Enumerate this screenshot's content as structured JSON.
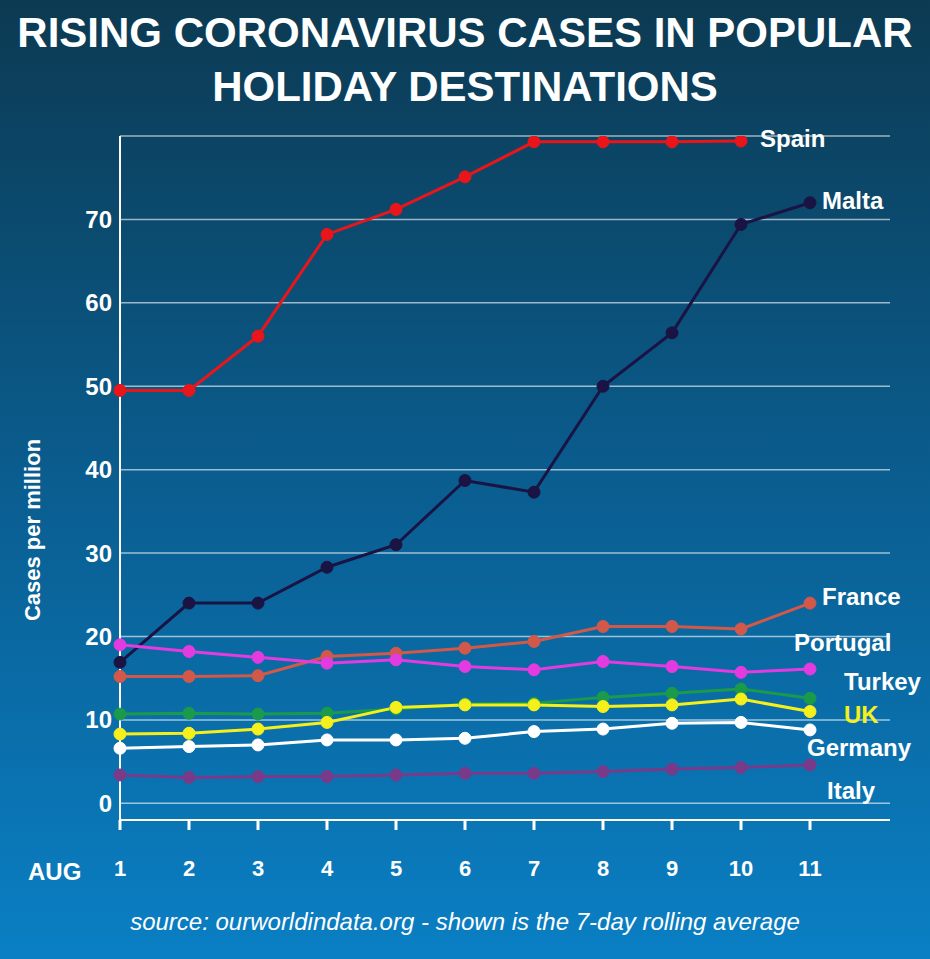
{
  "chart_data": {
    "type": "line",
    "title": "RISING CORONAVIRUS CASES IN POPULAR HOLIDAY DESTINATIONS",
    "y_label": "Cases per million",
    "x_label": "AUG",
    "source": "source: ourworldindata.org - shown is the 7-day rolling average",
    "categories": [
      "1",
      "2",
      "3",
      "4",
      "5",
      "6",
      "7",
      "8",
      "9",
      "10",
      "11"
    ],
    "series": [
      {
        "name": "Spain",
        "color": "#e8161b",
        "values": [
          49.5,
          49.5,
          56,
          68.2,
          71.2,
          75.1,
          79.3,
          79.3,
          79.3,
          79.4,
          null
        ]
      },
      {
        "name": "Malta",
        "color": "#1a1445",
        "values": [
          16.9,
          24,
          24,
          28.3,
          31,
          38.7,
          37.3,
          50,
          56.4,
          69.4,
          72
        ]
      },
      {
        "name": "France",
        "color": "#d2584a",
        "values": [
          15.2,
          15.2,
          15.3,
          17.6,
          18,
          18.6,
          19.4,
          21.2,
          21.2,
          20.9,
          24
        ]
      },
      {
        "name": "Portugal",
        "color": "#e23be0",
        "values": [
          19,
          18.2,
          17.5,
          16.8,
          17.2,
          16.4,
          16,
          17,
          16.4,
          15.7,
          16.1
        ]
      },
      {
        "name": "Turkey",
        "color": "#1a9a4a",
        "values": [
          10.7,
          10.8,
          10.7,
          10.8,
          11.3,
          11.9,
          12,
          12.7,
          13.2,
          13.7,
          12.6
        ]
      },
      {
        "name": "UK",
        "color": "#f5f01c",
        "values": [
          8.3,
          8.4,
          8.9,
          9.7,
          11.5,
          11.8,
          11.8,
          11.6,
          11.8,
          12.5,
          11
        ]
      },
      {
        "name": "Germany",
        "color": "#ffffff",
        "values": [
          6.6,
          6.8,
          7,
          7.6,
          7.6,
          7.8,
          8.6,
          8.9,
          9.6,
          9.7,
          8.8
        ]
      },
      {
        "name": "Italy",
        "color": "#7a3a8a",
        "values": [
          3.4,
          3.1,
          3.2,
          3.2,
          3.4,
          3.6,
          3.6,
          3.8,
          4.1,
          4.3,
          4.6
        ]
      }
    ],
    "ylim": [
      -2,
      80
    ],
    "yticks": [
      0,
      10,
      20,
      30,
      40,
      50,
      60,
      70
    ],
    "grid": true,
    "marker": "circle"
  }
}
